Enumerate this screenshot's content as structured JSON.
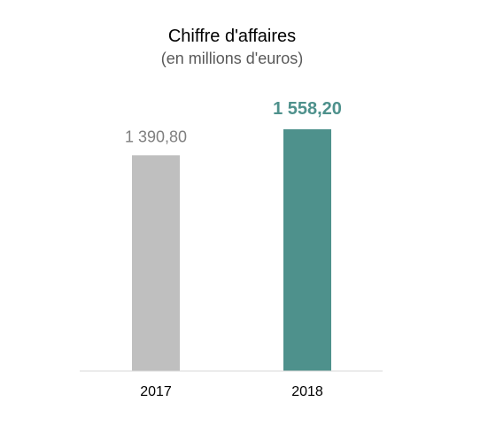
{
  "chart_data": {
    "type": "bar",
    "title": "Chiffre d'affaires",
    "subtitle": "(en millions d'euros)",
    "categories": [
      "2017",
      "2018"
    ],
    "values": [
      1390.8,
      1558.2
    ],
    "value_labels": [
      "1 390,80",
      "1 558,20"
    ],
    "bar_colors": [
      "#bfbfbf",
      "#4e918c"
    ],
    "label_colors": [
      "#7f7f7f",
      "#4e918c"
    ],
    "label_bold": [
      false,
      true
    ],
    "ylim": [
      0,
      1558.2
    ],
    "grid": false,
    "axis_color": "#d9d9d9"
  }
}
